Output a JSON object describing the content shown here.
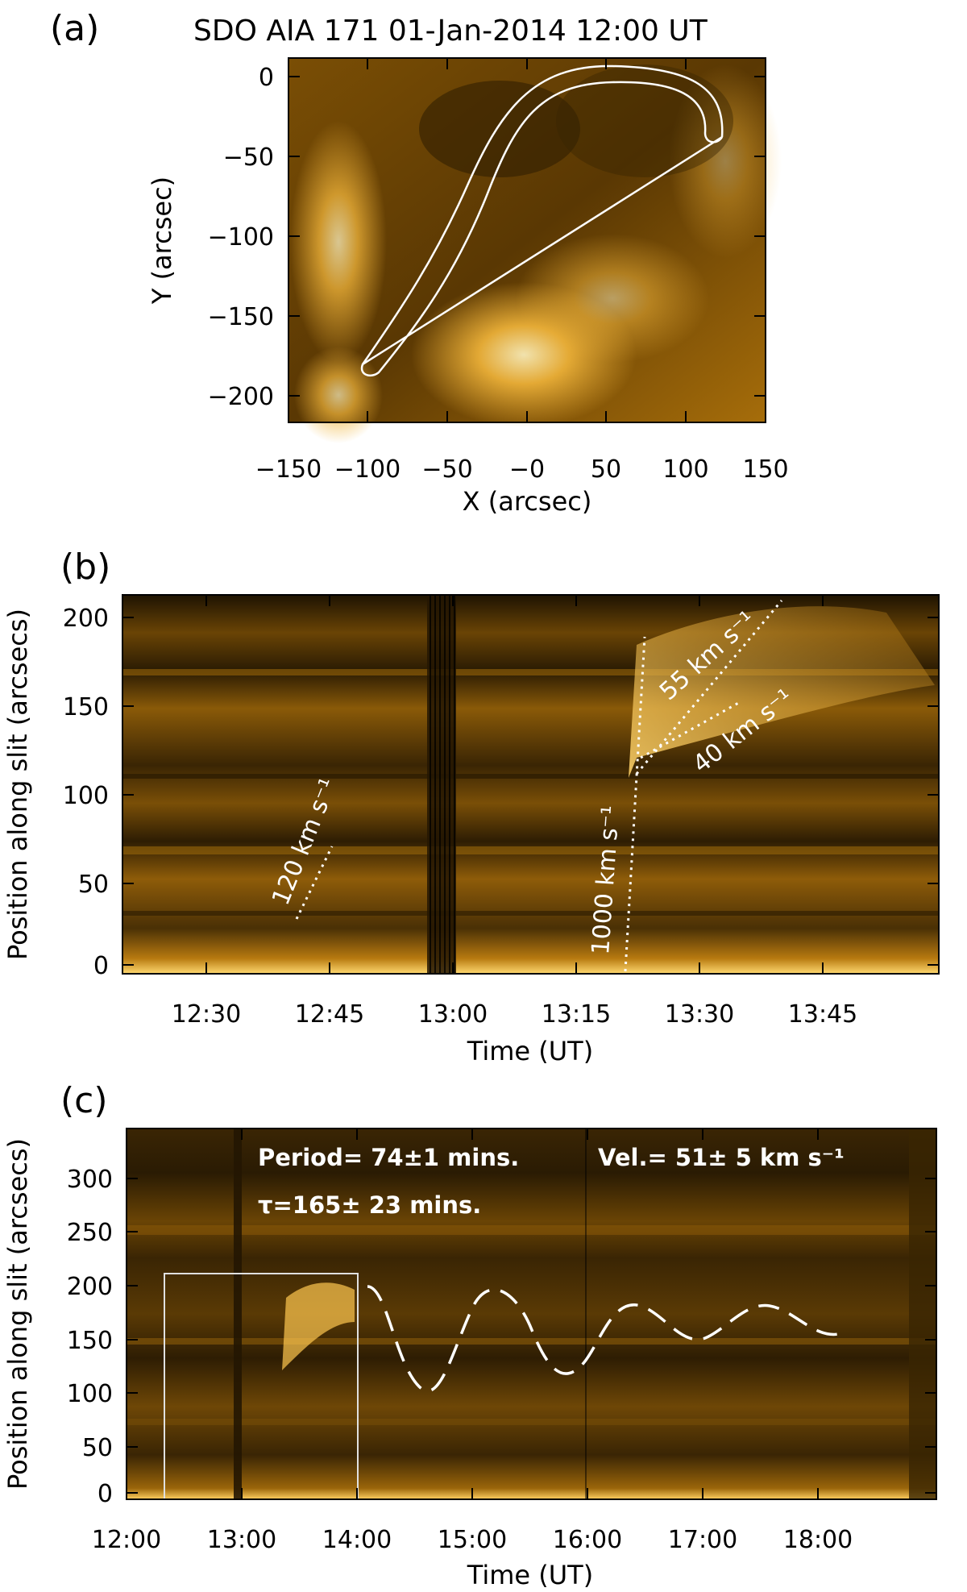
{
  "panel_a": {
    "letter": "(a)",
    "title": "SDO AIA 171 01-Jan-2014 12:00 UT",
    "xlabel": "X (arcsec)",
    "ylabel": "Y (arcsec)",
    "xticks": [
      "−150",
      "−100",
      "−50",
      "−0",
      "50",
      "100",
      "150"
    ],
    "yticks": [
      "0",
      "−50",
      "−100",
      "−150",
      "−200"
    ]
  },
  "panel_b": {
    "letter": "(b)",
    "xlabel": "Time (UT)",
    "ylabel": "Position along slit (arcsecs)",
    "xticks": [
      "12:30",
      "12:45",
      "13:00",
      "13:15",
      "13:30",
      "13:45"
    ],
    "yticks": [
      "200",
      "150",
      "100",
      "50",
      "0"
    ],
    "annotations": {
      "v120": "120 km s⁻¹",
      "v1000": "1000 km s⁻¹",
      "v55": "55 km s⁻¹",
      "v40": "40 km s⁻¹"
    }
  },
  "panel_c": {
    "letter": "(c)",
    "xlabel": "Time (UT)",
    "ylabel": "Position along slit (arcsecs)",
    "xticks": [
      "12:00",
      "13:00",
      "14:00",
      "15:00",
      "16:00",
      "17:00",
      "18:00"
    ],
    "yticks": [
      "300",
      "250",
      "200",
      "150",
      "100",
      "50",
      "0"
    ],
    "period": "Period= 74±1 mins.",
    "velocity": "Vel.= 51± 5 km s⁻¹",
    "tau": "τ=165± 23 mins."
  },
  "colors": {
    "aia171": "#c8880a",
    "dark": "#2a1a02",
    "bright": "#ffe89a"
  }
}
